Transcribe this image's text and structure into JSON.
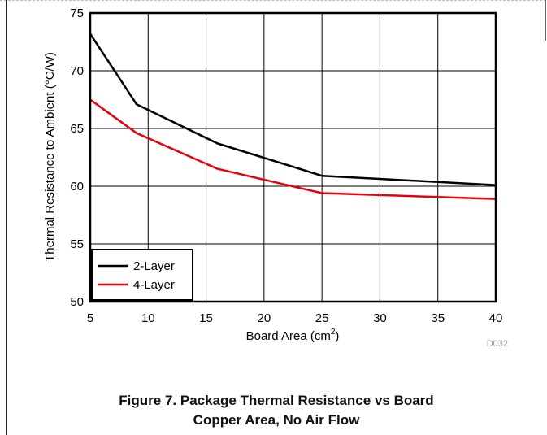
{
  "chart_data": {
    "type": "line",
    "xlabel": "Board Area (cm",
    "xlabel_sup": "2",
    "xlabel_tail": ")",
    "ylabel": "Thermal Resistance to Ambient (°C/W)",
    "xlim": [
      5,
      40
    ],
    "ylim": [
      50,
      75
    ],
    "x_ticks": [
      "5",
      "10",
      "15",
      "20",
      "25",
      "30",
      "35",
      "40"
    ],
    "y_ticks": [
      "50",
      "55",
      "60",
      "65",
      "70",
      "75"
    ],
    "grid": true,
    "legend_position": "bottom-left",
    "series": [
      {
        "name": "2-Layer",
        "color": "#000000",
        "x": [
          5,
          9,
          16,
          25,
          40
        ],
        "y": [
          73.2,
          67.1,
          63.7,
          60.9,
          60.1
        ]
      },
      {
        "name": "4-Layer",
        "color": "#e8000b",
        "x": [
          5,
          9,
          16,
          25,
          40
        ],
        "y": [
          67.5,
          64.6,
          61.5,
          59.4,
          58.9
        ]
      }
    ],
    "annotation": "D032"
  },
  "caption": {
    "line1": "Figure 7. Package Thermal Resistance vs Board",
    "line2": "Copper Area, No Air Flow"
  }
}
